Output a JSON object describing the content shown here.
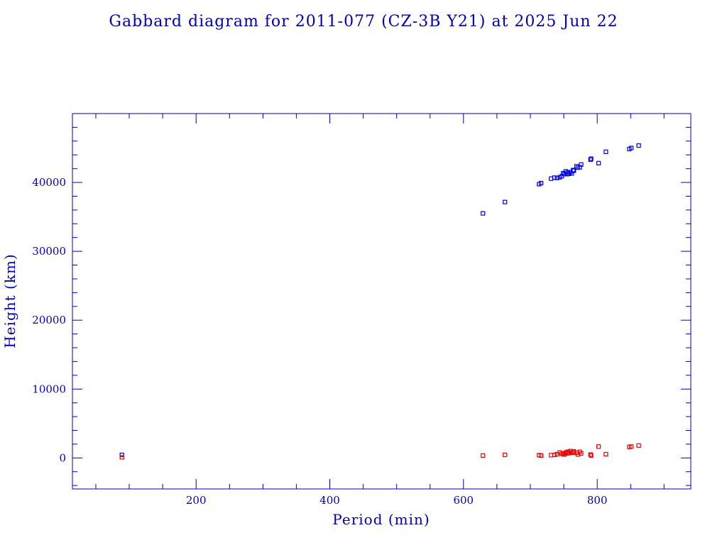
{
  "chart_data": {
    "type": "scatter",
    "title": "Gabbard diagram for 2011-077 (CZ-3B Y21) at 2025 Jun 22",
    "xlabel": "Period (min)",
    "ylabel": "Height (km)",
    "xlim": [
      15,
      940
    ],
    "ylim": [
      -4500,
      50000
    ],
    "x_ticks": [
      200,
      400,
      600,
      800
    ],
    "x_tick_labels": [
      "200",
      "400",
      "600",
      "800"
    ],
    "y_ticks": [
      0,
      10000,
      20000,
      30000,
      40000
    ],
    "y_tick_labels": [
      "0",
      "10000",
      "20000",
      "30000",
      "40000"
    ],
    "grid": false,
    "colors": {
      "frame": "#0000b4",
      "text": "#0000b4",
      "apogee": "#0000e6",
      "perigee": "#e60000"
    },
    "series": [
      {
        "role": "apogee",
        "color": "#0000e6",
        "points": [
          [
            89,
            450
          ],
          [
            629,
            35500
          ],
          [
            662,
            37150
          ],
          [
            713,
            39750
          ],
          [
            716,
            39900
          ],
          [
            731,
            40550
          ],
          [
            736,
            40700
          ],
          [
            740,
            40650
          ],
          [
            744,
            40750
          ],
          [
            747,
            40900
          ],
          [
            749,
            41350
          ],
          [
            751,
            41200
          ],
          [
            753,
            41600
          ],
          [
            755,
            41200
          ],
          [
            756,
            41450
          ],
          [
            758,
            41250
          ],
          [
            760,
            41500
          ],
          [
            762,
            41300
          ],
          [
            764,
            41800
          ],
          [
            765,
            41700
          ],
          [
            769,
            42350
          ],
          [
            771,
            42150
          ],
          [
            774,
            42200
          ],
          [
            776,
            42600
          ],
          [
            790,
            43300
          ],
          [
            791,
            43450
          ],
          [
            802,
            42800
          ],
          [
            813,
            44450
          ],
          [
            848,
            44850
          ],
          [
            851,
            45000
          ],
          [
            862,
            45350
          ]
        ]
      },
      {
        "role": "perigee",
        "color": "#e60000",
        "points": [
          [
            89,
            100
          ],
          [
            629,
            350
          ],
          [
            662,
            450
          ],
          [
            713,
            400
          ],
          [
            716,
            350
          ],
          [
            731,
            400
          ],
          [
            736,
            450
          ],
          [
            740,
            550
          ],
          [
            744,
            800
          ],
          [
            747,
            600
          ],
          [
            749,
            650
          ],
          [
            751,
            500
          ],
          [
            753,
            800
          ],
          [
            755,
            650
          ],
          [
            756,
            900
          ],
          [
            758,
            700
          ],
          [
            760,
            1000
          ],
          [
            762,
            750
          ],
          [
            764,
            800
          ],
          [
            765,
            950
          ],
          [
            769,
            750
          ],
          [
            771,
            500
          ],
          [
            774,
            900
          ],
          [
            776,
            650
          ],
          [
            790,
            500
          ],
          [
            791,
            350
          ],
          [
            802,
            1650
          ],
          [
            813,
            550
          ],
          [
            848,
            1600
          ],
          [
            851,
            1650
          ],
          [
            862,
            1800
          ]
        ]
      }
    ]
  }
}
